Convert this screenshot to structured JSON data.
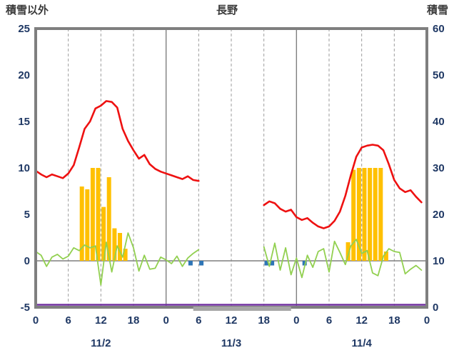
{
  "header": {
    "left_axis_title": "積雪以外",
    "title": "長野",
    "right_axis_title": "積雪"
  },
  "chart_data": {
    "type": "line",
    "title": "長野",
    "left_axis": {
      "label": "積雪以外",
      "min": -5,
      "max": 25,
      "ticks": [
        25,
        20,
        15,
        10,
        5,
        0,
        -5
      ]
    },
    "right_axis": {
      "label": "積雪",
      "min": 0,
      "max": 60,
      "ticks": [
        60,
        50,
        40,
        30,
        20,
        10,
        0
      ]
    },
    "x_axis": {
      "total_hours": 72,
      "days": [
        "11/2",
        "11/3",
        "11/4"
      ],
      "hour_tick_step": 6,
      "hour_tick_labels": [
        "0",
        "6",
        "12",
        "18",
        "0",
        "6",
        "12",
        "18",
        "0",
        "6",
        "12",
        "18",
        "0"
      ]
    },
    "grid": {
      "vertical_dashed_at_hours": [
        6,
        12,
        18
      ],
      "solid_day_boundaries": [
        24,
        48
      ],
      "horizontal_zero_line": true
    },
    "colors": {
      "temperature": "#ee1111",
      "sunshine": "#ffc000",
      "wind": "#92d050",
      "precipitation": "#2e75b6",
      "snow": "#7030a0",
      "frame": "#7f7f7f",
      "grid": "#9e9e9e",
      "tick_text": "#1f3864",
      "title_text": "#3a3a3a",
      "missing": "#a6a6a6"
    },
    "series": [
      {
        "name": "sunshine_duration",
        "type": "bar",
        "axis": "left",
        "color": "#ffc000",
        "points": [
          {
            "h": 8,
            "v": 8.0
          },
          {
            "h": 9,
            "v": 7.7
          },
          {
            "h": 10,
            "v": 10
          },
          {
            "h": 11,
            "v": 10
          },
          {
            "h": 12,
            "v": 5.8
          },
          {
            "h": 13,
            "v": 9.0
          },
          {
            "h": 14,
            "v": 3.5
          },
          {
            "h": 15,
            "v": 3.0
          },
          {
            "h": 16,
            "v": 1.3
          },
          {
            "h": 57,
            "v": 2.0
          },
          {
            "h": 58,
            "v": 9.8
          },
          {
            "h": 59,
            "v": 10
          },
          {
            "h": 60,
            "v": 10
          },
          {
            "h": 61,
            "v": 10
          },
          {
            "h": 62,
            "v": 10
          },
          {
            "h": 63,
            "v": 10
          },
          {
            "h": 64,
            "v": 1.0
          }
        ]
      },
      {
        "name": "precipitation",
        "type": "bar_down",
        "axis": "left",
        "color": "#2e75b6",
        "points": [
          {
            "h": 28,
            "v": 0.5
          },
          {
            "h": 30,
            "v": 0.5
          },
          {
            "h": 42,
            "v": 0.5
          },
          {
            "h": 43,
            "v": 0.5
          },
          {
            "h": 49,
            "v": 0.5
          }
        ]
      },
      {
        "name": "wind_speed",
        "type": "line",
        "axis": "left",
        "color": "#92d050",
        "width": 1.8,
        "values": [
          1.0,
          0.6,
          -0.6,
          0.4,
          0.7,
          0.2,
          0.5,
          1.4,
          1.1,
          1.7,
          1.4,
          1.6,
          -2.6,
          2.0,
          -1.2,
          1.6,
          0.4,
          3.0,
          1.4,
          -1.1,
          0.6,
          -0.9,
          -0.8,
          0.4,
          0.1,
          -0.3,
          0.5,
          -0.6,
          0.3,
          0.8,
          1.2,
          null,
          null,
          null,
          null,
          null,
          null,
          null,
          null,
          null,
          null,
          null,
          1.5,
          -0.6,
          1.9,
          -1.0,
          1.4,
          -1.5,
          0.3,
          -1.8,
          0.6,
          -0.7,
          1.0,
          1.3,
          -1.2,
          2.1,
          0.9,
          -0.4,
          1.6,
          2.3,
          0.8,
          1.1,
          -1.3,
          -1.6,
          0.5,
          1.3,
          1.0,
          0.9,
          -1.4,
          -0.9,
          -0.5,
          -1.0
        ]
      },
      {
        "name": "temperature",
        "type": "line",
        "axis": "left",
        "color": "#ee1111",
        "width": 2.6,
        "values": [
          9.7,
          9.3,
          9.0,
          9.3,
          9.1,
          8.9,
          9.4,
          10.3,
          12.2,
          14.2,
          15.0,
          16.4,
          16.7,
          17.2,
          17.1,
          16.5,
          14.2,
          12.9,
          11.9,
          11.0,
          11.4,
          10.4,
          9.9,
          9.6,
          9.4,
          9.2,
          9.0,
          8.8,
          9.1,
          8.7,
          8.6,
          null,
          null,
          null,
          null,
          null,
          null,
          null,
          null,
          null,
          null,
          null,
          6.0,
          6.4,
          6.2,
          5.6,
          5.3,
          5.5,
          4.7,
          4.4,
          4.6,
          4.1,
          3.7,
          3.5,
          3.7,
          4.3,
          5.3,
          7.0,
          9.2,
          11.2,
          12.2,
          12.4,
          12.5,
          12.4,
          11.9,
          10.4,
          8.7,
          7.8,
          7.4,
          7.6,
          6.9,
          6.3
        ]
      },
      {
        "name": "snow_depth",
        "type": "constant_line",
        "axis": "right",
        "color": "#7030a0",
        "width": 2.4,
        "value": 0
      }
    ],
    "missing_data_span": {
      "start_hour": 29,
      "end_hour": 47
    }
  }
}
